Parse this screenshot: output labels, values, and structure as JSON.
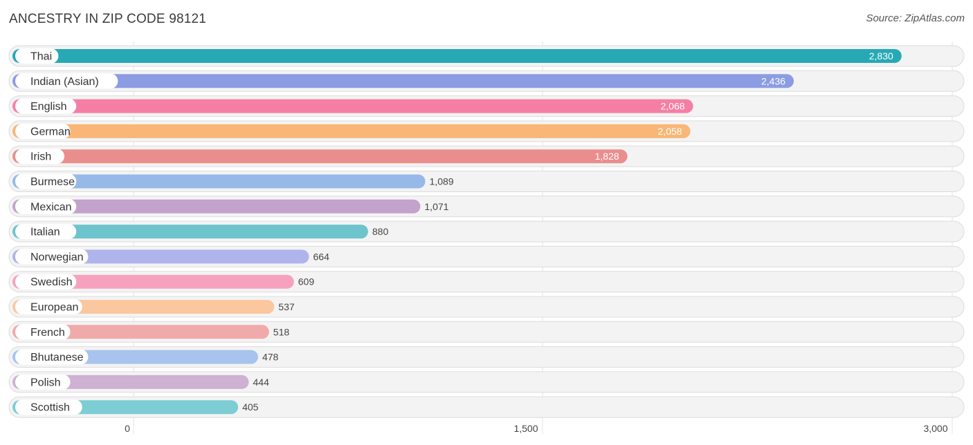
{
  "header": {
    "title": "ANCESTRY IN ZIP CODE 98121",
    "source": "Source: ZipAtlas.com"
  },
  "chart_data": {
    "type": "bar",
    "orientation": "horizontal",
    "title": "ANCESTRY IN ZIP CODE 98121",
    "categories": [
      "Thai",
      "Indian (Asian)",
      "English",
      "German",
      "Irish",
      "Burmese",
      "Mexican",
      "Italian",
      "Norwegian",
      "Swedish",
      "European",
      "French",
      "Bhutanese",
      "Polish",
      "Scottish"
    ],
    "values": [
      2830,
      2436,
      2068,
      2058,
      1828,
      1089,
      1071,
      880,
      664,
      609,
      537,
      518,
      478,
      444,
      405
    ],
    "value_labels": [
      "2,830",
      "2,436",
      "2,068",
      "2,058",
      "1,828",
      "1,089",
      "1,071",
      "880",
      "664",
      "609",
      "537",
      "518",
      "478",
      "444",
      "405"
    ],
    "colors": [
      "#26a9b5",
      "#8b9ce3",
      "#f57fa4",
      "#f9b676",
      "#e98e8c",
      "#96b9e7",
      "#c3a2cb",
      "#6ec4cc",
      "#afb5ea",
      "#f6a2bf",
      "#fbc79f",
      "#f0aaa9",
      "#a7c3ee",
      "#cfb1d4",
      "#7ccdd4"
    ],
    "xlim": [
      0,
      3000
    ],
    "ticks": [
      0,
      1500,
      3000
    ],
    "tick_labels": [
      "0",
      "1,500",
      "3,000"
    ],
    "grid": true
  }
}
